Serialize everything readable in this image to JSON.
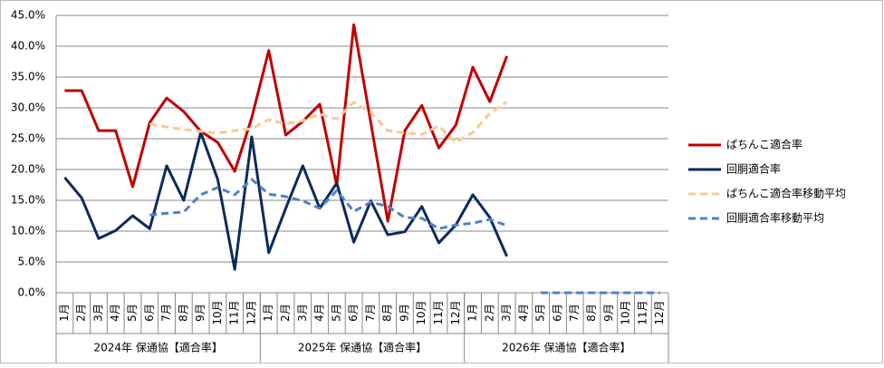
{
  "chart_data": {
    "type": "line",
    "categories": [
      "1月",
      "2月",
      "3月",
      "4月",
      "5月",
      "6月",
      "7月",
      "8月",
      "9月",
      "10月",
      "11月",
      "12月",
      "1月",
      "2月",
      "3月",
      "4月",
      "5月",
      "6月",
      "7月",
      "8月",
      "9月",
      "10月",
      "11月",
      "12月",
      "1月",
      "2月",
      "3月",
      "4月",
      "5月",
      "6月",
      "7月",
      "8月",
      "9月",
      "10月",
      "11月",
      "12月"
    ],
    "groups": [
      "2024年 保通協【適合率】",
      "2025年 保通協【適合率】",
      "2026年 保通協【適合率】"
    ],
    "ylim": [
      0,
      45
    ],
    "yticks": [
      {
        "value": 0,
        "label": "0.0%"
      },
      {
        "value": 5,
        "label": "5.0%"
      },
      {
        "value": 10,
        "label": "10.0%"
      },
      {
        "value": 15,
        "label": "15.0%"
      },
      {
        "value": 20,
        "label": "20.0%"
      },
      {
        "value": 25,
        "label": "25.0%"
      },
      {
        "value": 30,
        "label": "30.0%"
      },
      {
        "value": 35,
        "label": "35.0%"
      },
      {
        "value": 40,
        "label": "40.0%"
      },
      {
        "value": 45,
        "label": "45.0%"
      }
    ],
    "grid": true,
    "legend": "right",
    "series": [
      {
        "name": "ぱちんこ適合率",
        "color": "#c00000",
        "dash": false,
        "values": [
          32.8,
          32.8,
          26.3,
          26.3,
          17.2,
          27.6,
          31.6,
          29.4,
          26.2,
          24.4,
          19.7,
          28.4,
          39.3,
          25.6,
          27.8,
          30.6,
          17.4,
          43.5,
          27.6,
          11.6,
          26.3,
          30.4,
          23.5,
          27.2,
          36.6,
          31.0,
          38.4,
          null,
          null,
          null,
          null,
          null,
          null,
          null,
          null,
          null
        ]
      },
      {
        "name": "回胴適合率",
        "color": "#0c2a5c",
        "dash": false,
        "values": [
          18.7,
          15.4,
          8.8,
          10.1,
          12.5,
          10.4,
          20.6,
          15.0,
          26.0,
          18.4,
          3.8,
          25.3,
          6.5,
          13.7,
          20.6,
          13.7,
          17.8,
          8.2,
          14.9,
          9.4,
          9.9,
          14.0,
          8.1,
          11.0,
          15.9,
          12.2,
          5.9,
          null,
          null,
          null,
          null,
          null,
          null,
          null,
          null,
          null
        ]
      },
      {
        "name": "ぱちんこ適合率移動平均",
        "color": "#fac98f",
        "dash": true,
        "values": [
          null,
          null,
          null,
          null,
          null,
          27.4,
          26.9,
          26.5,
          26.2,
          25.9,
          26.3,
          26.6,
          28.1,
          27.4,
          27.9,
          29.0,
          28.2,
          30.9,
          29.3,
          26.3,
          25.9,
          25.7,
          27.1,
          24.4,
          26.0,
          29.1,
          31.0,
          null,
          0,
          0,
          0,
          0,
          0,
          0,
          0,
          0
        ]
      },
      {
        "name": "回胴適合率移動平均",
        "color": "#4f81c7",
        "dash": true,
        "values": [
          null,
          null,
          null,
          null,
          null,
          12.6,
          12.9,
          13.1,
          15.9,
          17.1,
          15.9,
          18.4,
          16.0,
          15.6,
          14.9,
          13.7,
          16.6,
          13.2,
          14.7,
          14.0,
          12.2,
          12.1,
          10.4,
          11.0,
          11.3,
          11.9,
          10.9,
          null,
          0,
          0,
          0,
          0,
          0,
          0,
          0,
          0
        ]
      }
    ]
  }
}
